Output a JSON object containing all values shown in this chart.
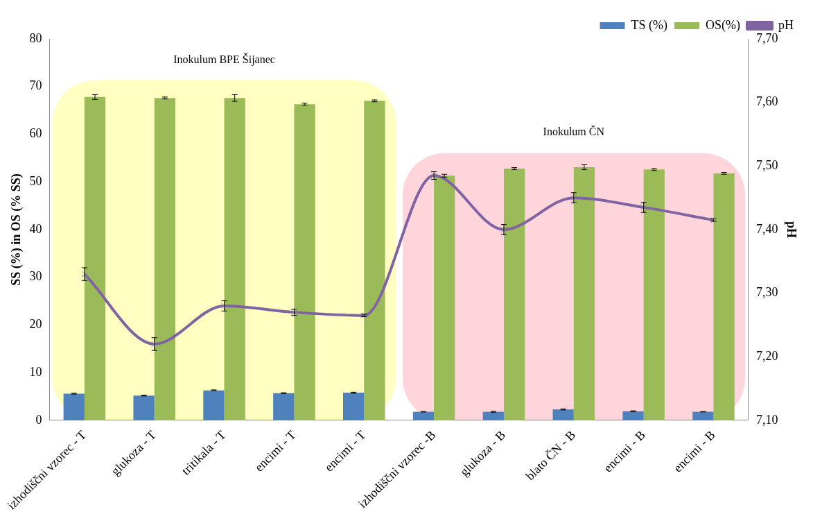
{
  "chart_data": {
    "type": "bar",
    "categories": [
      "izhodiščni vzorec - T",
      "glukoza - T",
      "tritikala - T",
      "encimi - T",
      "encimi - T",
      "izhodiščni vzorec -B",
      "glukoza - B",
      "blato ČN - B",
      "encimi - B",
      "encimi - B"
    ],
    "ylabel": "SS (%) in OS (% SS)",
    "y2label": "pH",
    "ylim": [
      0,
      80
    ],
    "yticks": [
      0,
      10,
      20,
      30,
      40,
      50,
      60,
      70,
      80
    ],
    "y2lim": [
      7.1,
      7.7
    ],
    "y2ticks": [
      {
        "value": 7.1,
        "label": "7,10"
      },
      {
        "value": 7.2,
        "label": "7,20"
      },
      {
        "value": 7.3,
        "label": "7,30"
      },
      {
        "value": 7.4,
        "label": "7,40"
      },
      {
        "value": 7.5,
        "label": "7,50"
      },
      {
        "value": 7.6,
        "label": "7,60"
      },
      {
        "value": 7.7,
        "label": "7,70"
      }
    ],
    "series": [
      {
        "name": "TS (%)",
        "color": "#4f81bd",
        "values": [
          5.6,
          5.2,
          6.3,
          5.7,
          5.8,
          1.8,
          1.8,
          2.3,
          1.9,
          1.8
        ],
        "errors": [
          0.1,
          0.1,
          0.1,
          0.1,
          0.1,
          0.05,
          0.1,
          0.1,
          0.1,
          0.05
        ]
      },
      {
        "name": "OS(%)",
        "color": "#9bbb59",
        "values": [
          67.8,
          67.6,
          67.6,
          66.3,
          67.0,
          51.3,
          52.8,
          53.1,
          52.6,
          51.8
        ],
        "errors": [
          0.5,
          0.2,
          0.7,
          0.2,
          0.2,
          0.3,
          0.2,
          0.5,
          0.2,
          0.2
        ]
      },
      {
        "name": "pH",
        "type": "line",
        "axis": "y2",
        "color": "#8064a2",
        "marker": "cross",
        "values": [
          7.33,
          7.22,
          7.28,
          7.27,
          7.265,
          7.485,
          7.4,
          7.45,
          7.435,
          7.415
        ],
        "errors": [
          0.01,
          0.01,
          0.008,
          0.005,
          0.002,
          0.006,
          0.008,
          0.008,
          0.008,
          0.002
        ]
      }
    ],
    "annotations": [
      "Inokulum BPE Šijanec",
      "Inokulum ČN"
    ],
    "grid": false,
    "legend": "top right"
  }
}
